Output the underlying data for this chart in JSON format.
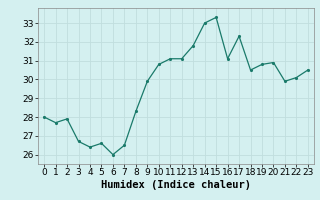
{
  "x": [
    0,
    1,
    2,
    3,
    4,
    5,
    6,
    7,
    8,
    9,
    10,
    11,
    12,
    13,
    14,
    15,
    16,
    17,
    18,
    19,
    20,
    21,
    22,
    23
  ],
  "y": [
    28.0,
    27.7,
    27.9,
    26.7,
    26.4,
    26.6,
    26.0,
    26.5,
    28.3,
    29.9,
    30.8,
    31.1,
    31.1,
    31.8,
    33.0,
    33.3,
    31.1,
    32.3,
    30.5,
    30.8,
    30.9,
    29.9,
    30.1,
    30.5
  ],
  "line_color": "#1a7a6a",
  "marker_color": "#1a7a6a",
  "bg_color": "#d4f0f0",
  "grid_color": "#c0dede",
  "xlabel": "Humidex (Indice chaleur)",
  "ylim": [
    25.5,
    33.8
  ],
  "xlim": [
    -0.5,
    23.5
  ],
  "yticks": [
    26,
    27,
    28,
    29,
    30,
    31,
    32,
    33
  ],
  "xticks": [
    0,
    1,
    2,
    3,
    4,
    5,
    6,
    7,
    8,
    9,
    10,
    11,
    12,
    13,
    14,
    15,
    16,
    17,
    18,
    19,
    20,
    21,
    22,
    23
  ],
  "xlabel_fontsize": 7.5,
  "tick_fontsize": 6.5
}
